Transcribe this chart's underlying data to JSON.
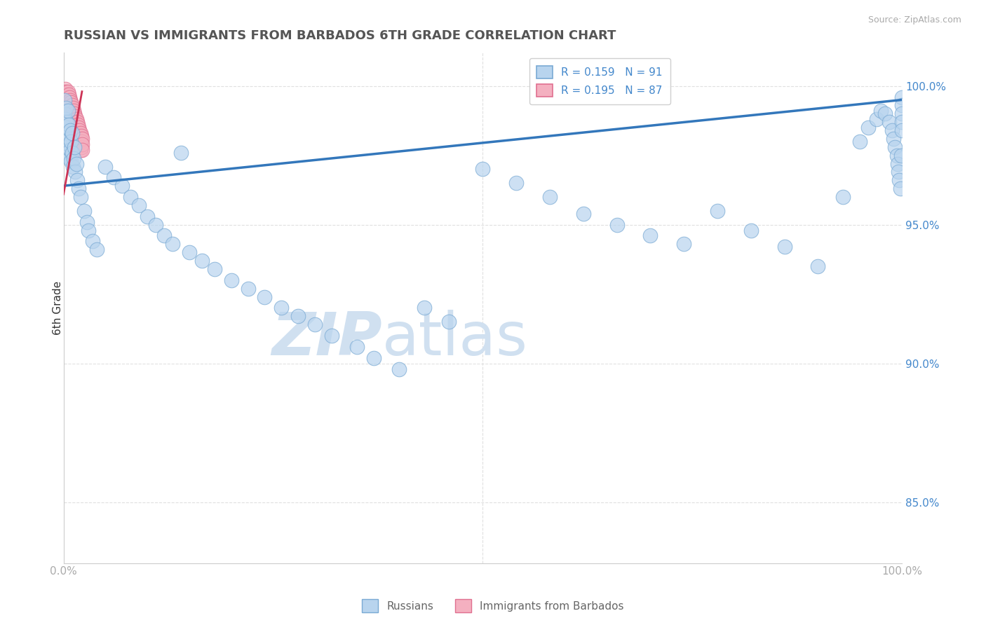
{
  "title": "RUSSIAN VS IMMIGRANTS FROM BARBADOS 6TH GRADE CORRELATION CHART",
  "source": "Source: ZipAtlas.com",
  "ylabel": "6th Grade",
  "ytick_vals": [
    0.85,
    0.9,
    0.95,
    1.0
  ],
  "ytick_labels": [
    "85.0%",
    "90.0%",
    "95.0%",
    "100.0%"
  ],
  "xlim": [
    0.0,
    1.0
  ],
  "ylim": [
    0.828,
    1.012
  ],
  "R1": 0.159,
  "N1": 91,
  "R2": 0.195,
  "N2": 87,
  "blue_face": "#b8d4ee",
  "blue_edge": "#7aaad4",
  "pink_face": "#f4b0c0",
  "pink_edge": "#e07090",
  "trendline_blue": "#3377bb",
  "trendline_pink": "#cc3355",
  "watermark_color": "#d0e0f0",
  "title_color": "#555555",
  "axis_color": "#aaaaaa",
  "grid_color": "#e0e0e0",
  "right_label_color": "#4488cc",
  "legend_label1": "Russians",
  "legend_label2": "Immigrants from Barbados",
  "blue_trend_x0": 0.0,
  "blue_trend_x1": 1.0,
  "blue_trend_y0": 0.964,
  "blue_trend_y1": 0.995,
  "pink_trend_x0": 0.0,
  "pink_trend_x1": 0.022,
  "pink_trend_y0": 0.961,
  "pink_trend_y1": 0.998,
  "russians_x": [
    0.001,
    0.001,
    0.002,
    0.002,
    0.003,
    0.003,
    0.004,
    0.004,
    0.005,
    0.005,
    0.005,
    0.006,
    0.006,
    0.007,
    0.007,
    0.008,
    0.008,
    0.009,
    0.009,
    0.01,
    0.01,
    0.011,
    0.012,
    0.013,
    0.014,
    0.015,
    0.016,
    0.018,
    0.02,
    0.025,
    0.028,
    0.03,
    0.035,
    0.04,
    0.05,
    0.06,
    0.07,
    0.08,
    0.09,
    0.1,
    0.11,
    0.12,
    0.13,
    0.14,
    0.15,
    0.165,
    0.18,
    0.2,
    0.22,
    0.24,
    0.26,
    0.28,
    0.3,
    0.32,
    0.35,
    0.37,
    0.4,
    0.43,
    0.46,
    0.5,
    0.54,
    0.58,
    0.62,
    0.66,
    0.7,
    0.74,
    0.78,
    0.82,
    0.86,
    0.9,
    0.93,
    0.95,
    0.96,
    0.97,
    0.975,
    0.98,
    0.985,
    0.988,
    0.99,
    0.992,
    0.994,
    0.995,
    0.996,
    0.997,
    0.998,
    0.999,
    1.0,
    1.0,
    1.0,
    1.0,
    1.0
  ],
  "russians_y": [
    0.99,
    0.995,
    0.988,
    0.982,
    0.992,
    0.985,
    0.978,
    0.987,
    0.975,
    0.983,
    0.991,
    0.979,
    0.986,
    0.981,
    0.974,
    0.977,
    0.984,
    0.98,
    0.973,
    0.976,
    0.983,
    0.971,
    0.974,
    0.978,
    0.969,
    0.972,
    0.966,
    0.963,
    0.96,
    0.955,
    0.951,
    0.948,
    0.944,
    0.941,
    0.971,
    0.967,
    0.964,
    0.96,
    0.957,
    0.953,
    0.95,
    0.946,
    0.943,
    0.976,
    0.94,
    0.937,
    0.934,
    0.93,
    0.927,
    0.924,
    0.92,
    0.917,
    0.914,
    0.91,
    0.906,
    0.902,
    0.898,
    0.92,
    0.915,
    0.97,
    0.965,
    0.96,
    0.954,
    0.95,
    0.946,
    0.943,
    0.955,
    0.948,
    0.942,
    0.935,
    0.96,
    0.98,
    0.985,
    0.988,
    0.991,
    0.99,
    0.987,
    0.984,
    0.981,
    0.978,
    0.975,
    0.972,
    0.969,
    0.966,
    0.963,
    0.975,
    0.996,
    0.993,
    0.99,
    0.987,
    0.984
  ],
  "barbados_x": [
    0.001,
    0.001,
    0.001,
    0.002,
    0.002,
    0.002,
    0.002,
    0.003,
    0.003,
    0.003,
    0.003,
    0.003,
    0.004,
    0.004,
    0.004,
    0.004,
    0.005,
    0.005,
    0.005,
    0.005,
    0.005,
    0.006,
    0.006,
    0.006,
    0.006,
    0.006,
    0.007,
    0.007,
    0.007,
    0.007,
    0.008,
    0.008,
    0.008,
    0.008,
    0.009,
    0.009,
    0.009,
    0.009,
    0.01,
    0.01,
    0.01,
    0.01,
    0.01,
    0.011,
    0.011,
    0.011,
    0.012,
    0.012,
    0.012,
    0.012,
    0.013,
    0.013,
    0.013,
    0.013,
    0.014,
    0.014,
    0.014,
    0.015,
    0.015,
    0.015,
    0.015,
    0.015,
    0.016,
    0.016,
    0.016,
    0.016,
    0.017,
    0.017,
    0.017,
    0.017,
    0.018,
    0.018,
    0.018,
    0.018,
    0.019,
    0.019,
    0.019,
    0.02,
    0.02,
    0.02,
    0.02,
    0.021,
    0.021,
    0.021,
    0.022,
    0.022,
    0.022
  ],
  "barbados_y": [
    0.998,
    0.996,
    0.994,
    0.999,
    0.997,
    0.995,
    0.993,
    0.998,
    0.996,
    0.994,
    0.992,
    0.99,
    0.997,
    0.995,
    0.993,
    0.991,
    0.998,
    0.996,
    0.994,
    0.992,
    0.99,
    0.997,
    0.995,
    0.993,
    0.991,
    0.989,
    0.996,
    0.994,
    0.992,
    0.99,
    0.995,
    0.993,
    0.991,
    0.989,
    0.994,
    0.992,
    0.99,
    0.988,
    0.993,
    0.991,
    0.989,
    0.987,
    0.985,
    0.992,
    0.99,
    0.988,
    0.991,
    0.989,
    0.987,
    0.985,
    0.99,
    0.988,
    0.986,
    0.984,
    0.989,
    0.987,
    0.985,
    0.988,
    0.986,
    0.984,
    0.982,
    0.98,
    0.987,
    0.985,
    0.983,
    0.981,
    0.986,
    0.984,
    0.982,
    0.98,
    0.985,
    0.983,
    0.981,
    0.979,
    0.984,
    0.982,
    0.98,
    0.983,
    0.981,
    0.979,
    0.977,
    0.982,
    0.98,
    0.978,
    0.981,
    0.979,
    0.977
  ]
}
